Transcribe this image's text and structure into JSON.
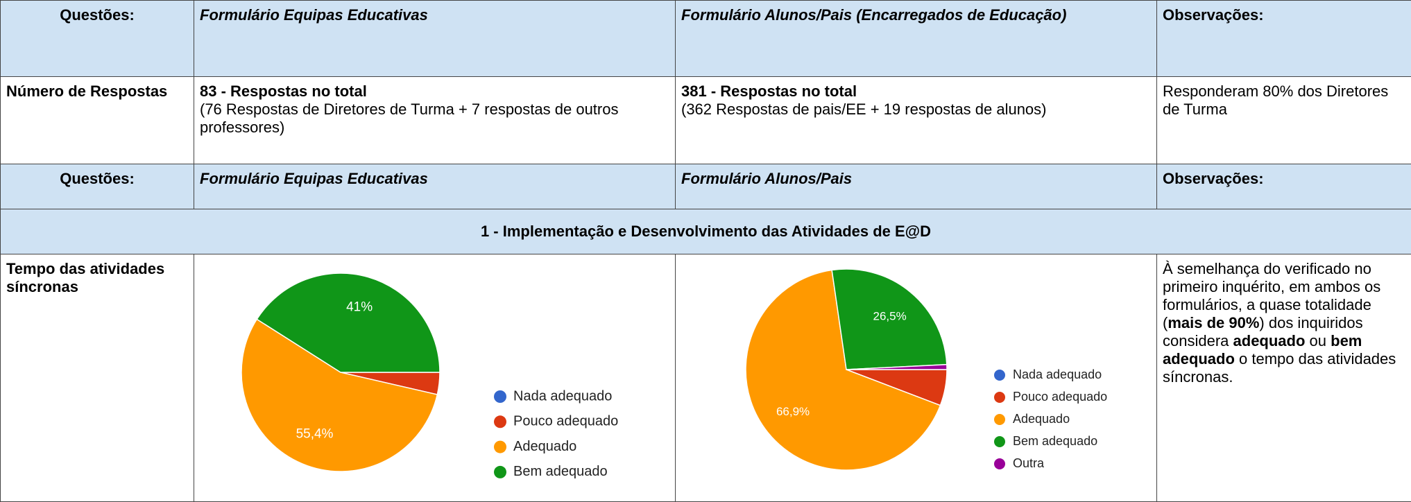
{
  "table": {
    "header": [
      "Questões:",
      "Formulário Equipas Educativas",
      "Formulário Alunos/Pais (Encarregados de Educação)",
      "Observações:"
    ],
    "responses": {
      "label": "Número de Respostas",
      "cells": [
        {
          "title": "83 - Respostas no total",
          "detail": "(76 Respostas de Diretores de Turma + 7 respostas de outros professores)"
        },
        {
          "title": "381 - Respostas no total",
          "detail": "(362 Respostas de pais/EE + 19 respostas de alunos)"
        }
      ],
      "note": "Responderam 80% dos Diretores de Turma"
    },
    "subheader": [
      "Questões:",
      "Formulário Equipas Educativas",
      "Formulário Alunos/Pais",
      "Observações:"
    ],
    "section": "1 - Implementação e Desenvolvimento das Atividades de E@D",
    "question": {
      "label": "Tempo das atividades síncronas",
      "note": [
        {
          "text": "À semelhança do verificado no primeiro inquérito, em ambos os formulários, a quase totalidade (",
          "bold": false
        },
        {
          "text": "mais de 90%",
          "bold": true
        },
        {
          "text": ") dos inquiridos considera ",
          "bold": false
        },
        {
          "text": "adequado",
          "bold": true
        },
        {
          "text": " ou ",
          "bold": false
        },
        {
          "text": "bem adequado",
          "bold": true
        },
        {
          "text": " o tempo das atividades síncronas.",
          "bold": false
        }
      ]
    }
  },
  "charts": [
    {
      "type": "pie",
      "categories": [
        "Nada adequado",
        "Pouco adequado",
        "Adequado",
        "Bem adequado"
      ],
      "values": [
        0,
        3.6,
        55.4,
        41
      ],
      "value_labels": [
        null,
        null,
        "55,4%",
        "41%"
      ],
      "colors": [
        "#3366cc",
        "#dc3912",
        "#ff9900",
        "#109618"
      ]
    },
    {
      "type": "pie",
      "categories": [
        "Nada adequado",
        "Pouco adequado",
        "Adequado",
        "Bem adequado",
        "Outra"
      ],
      "values": [
        0,
        5.8,
        66.9,
        26.5,
        0.8
      ],
      "value_labels": [
        null,
        null,
        "66,9%",
        "26,5%",
        null
      ],
      "colors": [
        "#3366cc",
        "#dc3912",
        "#ff9900",
        "#109618",
        "#990099"
      ]
    }
  ]
}
